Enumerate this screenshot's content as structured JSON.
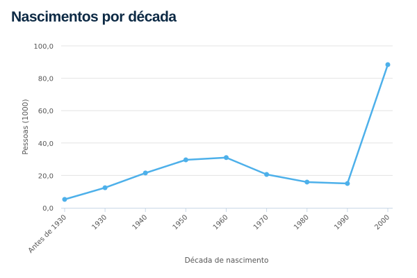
{
  "chart_data": {
    "type": "line",
    "title": "Nascimentos por década",
    "xlabel": "Década de nascimento",
    "ylabel": "Pessoas (1000)",
    "categories": [
      "Antes de 1930",
      "1930",
      "1940",
      "1950",
      "1960",
      "1970",
      "1980",
      "1990",
      "2000"
    ],
    "values": [
      5.2,
      12.4,
      21.5,
      29.6,
      31.0,
      20.6,
      15.9,
      15.0,
      88.4
    ],
    "ylim": [
      0,
      100
    ],
    "yticks": [
      "0,0",
      "20,0",
      "40,0",
      "60,0",
      "80,0",
      "100,0"
    ],
    "grid": true,
    "legend": "none",
    "color": "#4db0ea"
  }
}
